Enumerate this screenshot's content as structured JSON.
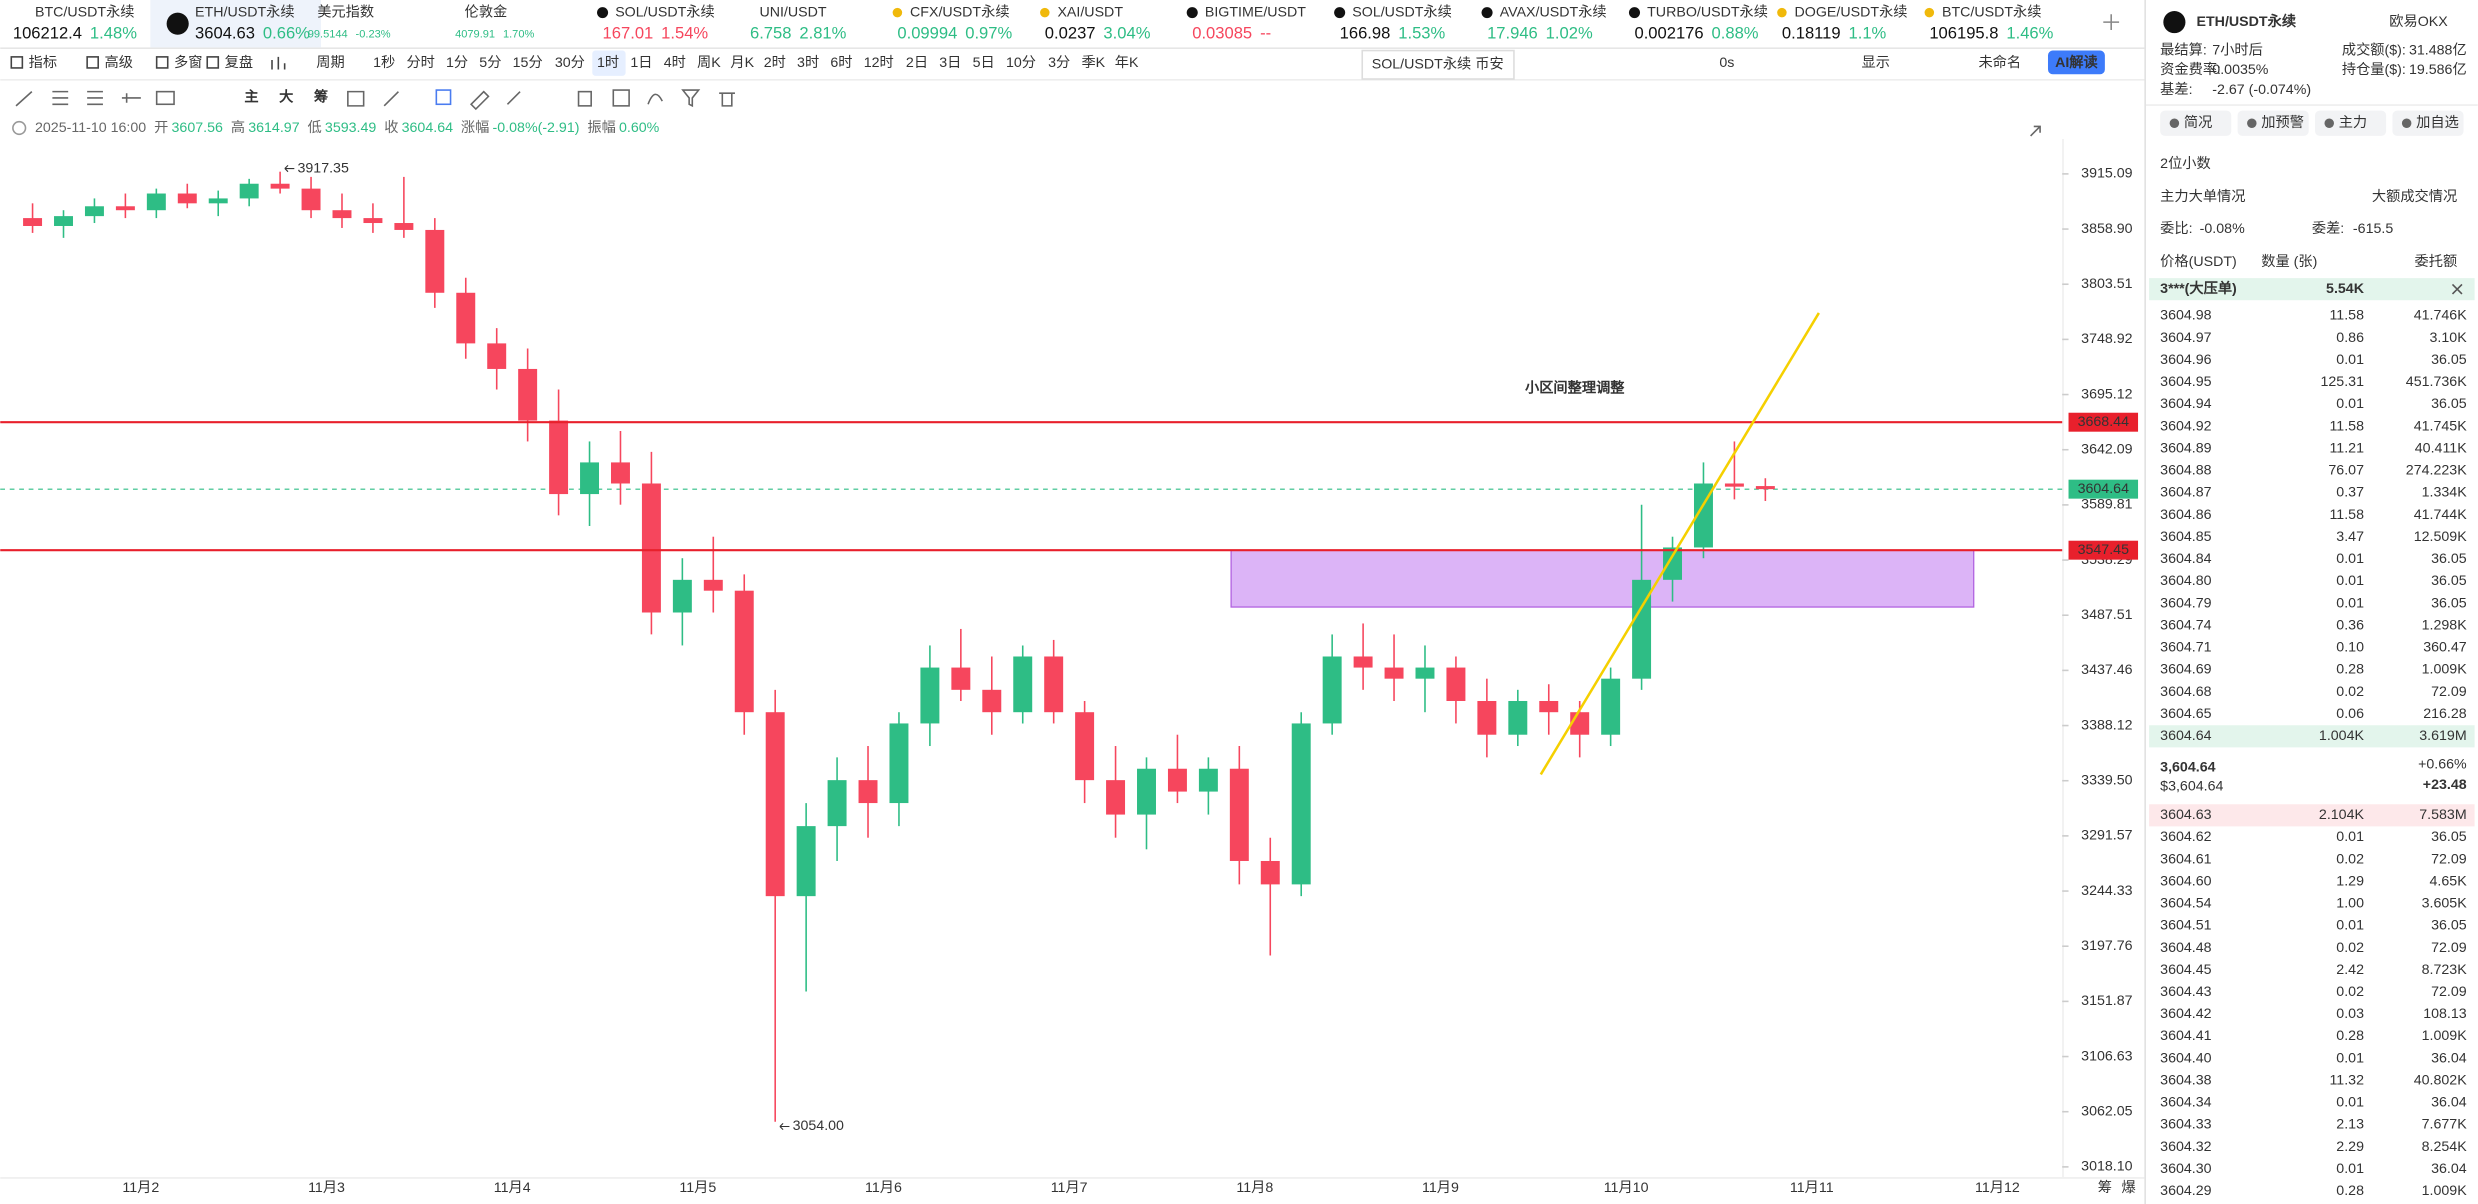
{
  "tickers": [
    {
      "name": "BTC/USDT永续",
      "price": "106212.4",
      "change": "1.48%",
      "color": "#2ebd85"
    },
    {
      "name": "ETH/USDT永续",
      "price": "3604.63",
      "change": "0.66%",
      "color": "#2ebd85"
    },
    {
      "name": "美元指数",
      "price": "99.5144",
      "change": "-0.23%",
      "color": "#2ebd85"
    },
    {
      "name": "伦敦金",
      "price": "4079.91",
      "change": "1.70%",
      "color": "#2ebd85"
    },
    {
      "name": "SOL/USDT永续",
      "price": "167.01",
      "change": "1.54%",
      "color": "#f6465d"
    },
    {
      "name": "UNI/USDT",
      "price": "6.758",
      "change": "2.81%",
      "color": "#2ebd85"
    },
    {
      "name": "CFX/USDT永续",
      "price": "0.09994",
      "change": "0.97%",
      "color": "#2ebd85"
    },
    {
      "name": "XAI/USDT",
      "price": "0.0237",
      "change": "3.04%",
      "color": "#2ebd85"
    },
    {
      "name": "BIGTIME/USDT",
      "price": "0.03085",
      "change": "--",
      "color": "#f6465d"
    },
    {
      "name": "SOL/USDT永续",
      "price": "166.98",
      "change": "1.53%",
      "color": "#2ebd85"
    },
    {
      "name": "AVAX/USDT永续",
      "price": "17.946",
      "change": "1.02%",
      "color": "#2ebd85"
    },
    {
      "name": "TURBO/USDT永续",
      "price": "0.002176",
      "change": "0.88%",
      "color": "#2ebd85"
    },
    {
      "name": "DOGE/USDT永续",
      "price": "0.18119",
      "change": "1.1%",
      "color": "#2ebd85"
    },
    {
      "name": "BTC/USDT永续",
      "price": "106195.8",
      "change": "1.46%",
      "color": "#2ebd85"
    }
  ],
  "toolbar": {
    "left": [
      "指标",
      "高级",
      "多窗",
      "复盘"
    ],
    "period_label": "周期",
    "periods": [
      "1秒",
      "分时",
      "1分",
      "5分",
      "15分",
      "30分",
      "1时",
      "1日",
      "4时",
      "周K",
      "月K",
      "2时",
      "3时",
      "6时",
      "12时",
      "2日",
      "3日",
      "5日",
      "10分",
      "3分",
      "季K",
      "年K"
    ],
    "active_period": "1时",
    "right": [
      "0s",
      "显示",
      "未命名"
    ],
    "ai_button": "AI解读"
  },
  "tooltip": "SOL/USDT永续 币安",
  "indicator_buttons": [
    "主",
    "大",
    "筹"
  ],
  "info": {
    "datetime": "2025-11-10 16:00",
    "items": [
      {
        "label": "开",
        "value": "3607.56"
      },
      {
        "label": "高",
        "value": "3614.97"
      },
      {
        "label": "低",
        "value": "3593.49"
      },
      {
        "label": "收",
        "value": "3604.64"
      },
      {
        "label": "涨幅",
        "value": "-0.08%(-2.91)"
      },
      {
        "label": "振幅",
        "value": "0.60%"
      }
    ]
  },
  "chart_data": {
    "type": "candlestick",
    "scale": "log",
    "up_color": "#2ebd85",
    "down_color": "#f6465d",
    "candles": [
      [
        3870,
        3885,
        3855,
        3862
      ],
      [
        3862,
        3878,
        3850,
        3872
      ],
      [
        3872,
        3890,
        3865,
        3882
      ],
      [
        3882,
        3895,
        3870,
        3878
      ],
      [
        3878,
        3900,
        3870,
        3895
      ],
      [
        3895,
        3905,
        3880,
        3885
      ],
      [
        3885,
        3898,
        3872,
        3890
      ],
      [
        3890,
        3910,
        3882,
        3905
      ],
      [
        3905,
        3917.35,
        3895,
        3900
      ],
      [
        3900,
        3912,
        3870,
        3878
      ],
      [
        3878,
        3895,
        3860,
        3870
      ],
      [
        3870,
        3885,
        3855,
        3865
      ],
      [
        3865,
        3912,
        3850,
        3858
      ],
      [
        3858,
        3870,
        3780,
        3795
      ],
      [
        3795,
        3810,
        3730,
        3745
      ],
      [
        3745,
        3760,
        3700,
        3720
      ],
      [
        3720,
        3740,
        3650,
        3670
      ],
      [
        3670,
        3700,
        3580,
        3600
      ],
      [
        3600,
        3650,
        3570,
        3630
      ],
      [
        3630,
        3660,
        3590,
        3610
      ],
      [
        3610,
        3640,
        3470,
        3490
      ],
      [
        3490,
        3540,
        3460,
        3520
      ],
      [
        3520,
        3560,
        3490,
        3510
      ],
      [
        3510,
        3525,
        3380,
        3400
      ],
      [
        3400,
        3420,
        3054,
        3240
      ],
      [
        3240,
        3320,
        3160,
        3300
      ],
      [
        3300,
        3360,
        3270,
        3340
      ],
      [
        3340,
        3370,
        3290,
        3320
      ],
      [
        3320,
        3400,
        3300,
        3390
      ],
      [
        3390,
        3460,
        3370,
        3440
      ],
      [
        3440,
        3475,
        3410,
        3420
      ],
      [
        3420,
        3450,
        3380,
        3400
      ],
      [
        3400,
        3460,
        3390,
        3450
      ],
      [
        3450,
        3465,
        3390,
        3400
      ],
      [
        3400,
        3410,
        3320,
        3340
      ],
      [
        3340,
        3370,
        3290,
        3310
      ],
      [
        3310,
        3360,
        3280,
        3350
      ],
      [
        3350,
        3380,
        3320,
        3330
      ],
      [
        3330,
        3360,
        3310,
        3350
      ],
      [
        3350,
        3370,
        3250,
        3270
      ],
      [
        3270,
        3290,
        3190,
        3250
      ],
      [
        3250,
        3400,
        3240,
        3390
      ],
      [
        3390,
        3470,
        3380,
        3450
      ],
      [
        3450,
        3480,
        3420,
        3440
      ],
      [
        3440,
        3470,
        3410,
        3430
      ],
      [
        3430,
        3460,
        3400,
        3440
      ],
      [
        3440,
        3450,
        3390,
        3410
      ],
      [
        3410,
        3430,
        3360,
        3380
      ],
      [
        3380,
        3420,
        3370,
        3410
      ],
      [
        3410,
        3425,
        3380,
        3400
      ],
      [
        3400,
        3410,
        3360,
        3380
      ],
      [
        3380,
        3440,
        3370,
        3430
      ],
      [
        3430,
        3590,
        3420,
        3520
      ],
      [
        3520,
        3560,
        3500,
        3550
      ],
      [
        3550,
        3630,
        3540,
        3610
      ],
      [
        3610,
        3650,
        3595,
        3607
      ],
      [
        3607.56,
        3614.97,
        3593.49,
        3604.64
      ]
    ],
    "ylim": [
      3010,
      3951
    ],
    "yticks": [
      3915.09,
      {
        "value": 3858.9,
        "label": "3858.90"
      },
      3803.51,
      3748.92,
      3695.12,
      3642.09,
      3589.81,
      3538.29,
      3487.51,
      3437.46,
      3388.12,
      {
        "value": 3339.5,
        "label": "3339.50"
      },
      3291.57,
      3244.33,
      3197.76,
      3151.87,
      3106.63,
      3062.05,
      {
        "value": 3018.1,
        "label": "3018.10"
      }
    ],
    "xticks": [
      "11月2",
      "11月3",
      "11月4",
      "11月5",
      "11月6",
      "11月7",
      "11月8",
      "11月9",
      "11月10",
      "11月11",
      "11月12"
    ],
    "high_label": "3917.35",
    "low_label": "3054.00",
    "last_price": 3604.64,
    "last_price_label": "3604.64",
    "last_color": "#2ebd85",
    "levels": [
      {
        "value": 3668.44,
        "label": "3668.44",
        "color": "#e8202c"
      },
      {
        "value": 3547.45,
        "label": "3547.45",
        "color": "#e8202c"
      }
    ],
    "zone": {
      "top": 3547.45,
      "bottom": 3495,
      "color": "#dcb4f7"
    },
    "trendline": {
      "from": 3345,
      "to": 3775,
      "color": "#f5d000"
    },
    "annotation": "小区间整理调整",
    "annotation_color": "#f0323c"
  },
  "chart_footer": [
    "筹",
    "爆"
  ],
  "panel": {
    "title": "ETH/USDT永续",
    "exchange": "欧易OKX",
    "stats": [
      {
        "label": "最结算:",
        "value": "7小时后"
      },
      {
        "label": "资金费率:",
        "value": "0.0035%"
      },
      {
        "label": "基差:",
        "value": "-2.67 (-0.074%)"
      }
    ],
    "stats_right": [
      {
        "label": "成交额($):",
        "value": "31.488亿"
      },
      {
        "label": "持仓量($):",
        "value": "19.586亿"
      }
    ],
    "buttons": [
      "简况",
      "加预警",
      "主力",
      "加自选"
    ],
    "decimals": "2位小数",
    "links": [
      "主力大单情况",
      "大额成交情况"
    ],
    "ratio": {
      "label": "委比:",
      "value": "-0.08%"
    },
    "diff": {
      "label": "委差:",
      "value": "-615.5"
    },
    "headers": [
      "价格(USDT)",
      "数量 (张)",
      "委托额"
    ],
    "big_order": {
      "label": "3***(大压单)",
      "value": "5.54K"
    },
    "asks": [
      [
        "3604.98",
        "11.58",
        "41.746K"
      ],
      [
        "3604.97",
        "0.86",
        "3.10K"
      ],
      [
        "3604.96",
        "0.01",
        "36.05"
      ],
      [
        "3604.95",
        "125.31",
        "451.736K"
      ],
      [
        "3604.94",
        "0.01",
        "36.05"
      ],
      [
        "3604.92",
        "11.58",
        "41.745K"
      ],
      [
        "3604.89",
        "11.21",
        "40.411K"
      ],
      [
        "3604.88",
        "76.07",
        "274.223K"
      ],
      [
        "3604.87",
        "0.37",
        "1.334K"
      ],
      [
        "3604.86",
        "11.58",
        "41.744K"
      ],
      [
        "3604.85",
        "3.47",
        "12.509K"
      ],
      [
        "3604.84",
        "0.01",
        "36.05"
      ],
      [
        "3604.80",
        "0.01",
        "36.05"
      ],
      [
        "3604.79",
        "0.01",
        "36.05"
      ],
      [
        "3604.74",
        "0.36",
        "1.298K"
      ],
      [
        "3604.71",
        "0.10",
        "360.47"
      ],
      [
        "3604.69",
        "0.28",
        "1.009K"
      ],
      [
        "3604.68",
        "0.02",
        "72.09"
      ],
      [
        "3604.65",
        "0.06",
        "216.28"
      ],
      [
        "3604.64",
        "1.004K",
        "3.619M"
      ]
    ],
    "mid": {
      "price": "3,604.64",
      "change": "+0.66%",
      "usd": "$3,604.64",
      "delta": "+23.48"
    },
    "bids": [
      [
        "3604.63",
        "2.104K",
        "7.583M"
      ],
      [
        "3604.62",
        "0.01",
        "36.05"
      ],
      [
        "3604.61",
        "0.02",
        "72.09"
      ],
      [
        "3604.60",
        "1.29",
        "4.65K"
      ],
      [
        "3604.54",
        "1.00",
        "3.605K"
      ],
      [
        "3604.51",
        "0.01",
        "36.05"
      ],
      [
        "3604.48",
        "0.02",
        "72.09"
      ],
      [
        "3604.45",
        "2.42",
        "8.723K"
      ],
      [
        "3604.43",
        "0.02",
        "72.09"
      ],
      [
        "3604.42",
        "0.03",
        "108.13"
      ],
      [
        "3604.41",
        "0.28",
        "1.009K"
      ],
      [
        "3604.40",
        "0.01",
        "36.04"
      ],
      [
        "3604.38",
        "11.32",
        "40.802K"
      ],
      [
        "3604.34",
        "0.01",
        "36.04"
      ],
      [
        "3604.33",
        "2.13",
        "7.677K"
      ],
      [
        "3604.32",
        "2.29",
        "8.254K"
      ],
      [
        "3604.30",
        "0.01",
        "36.04"
      ],
      [
        "3604.29",
        "0.28",
        "1.009K"
      ]
    ]
  }
}
